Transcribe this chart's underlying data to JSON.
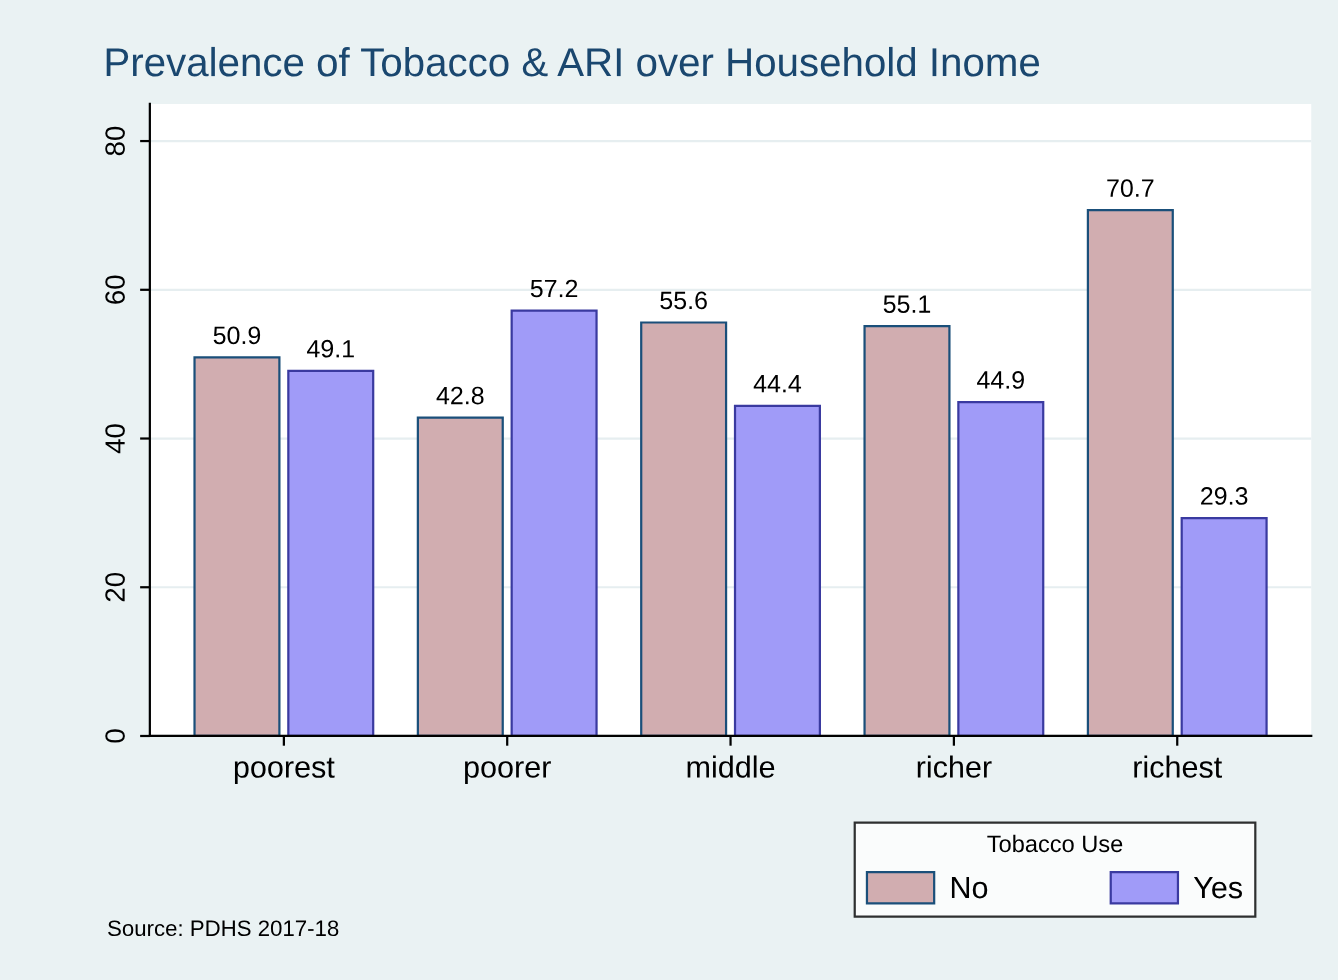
{
  "chart_data": {
    "type": "bar",
    "title": "Prevalence of Tobacco & ARI over Household Inome",
    "categories": [
      "poorest",
      "poorer",
      "middle",
      "richer",
      "richest"
    ],
    "series": [
      {
        "name": "No",
        "color": "#d1adb0",
        "values": [
          50.9,
          42.8,
          55.6,
          55.1,
          70.7
        ]
      },
      {
        "name": "Yes",
        "color": "#a09bf8",
        "values": [
          49.1,
          57.2,
          44.4,
          44.9,
          29.3
        ]
      }
    ],
    "ylim": [
      0,
      85
    ],
    "yticks": [
      0,
      20,
      40,
      60,
      80
    ],
    "grid": "y",
    "data_labels": true,
    "legend": "bottom right",
    "legend_title": "Tobacco Use",
    "annotations": [
      "Source: PDHS 2017-18"
    ]
  }
}
